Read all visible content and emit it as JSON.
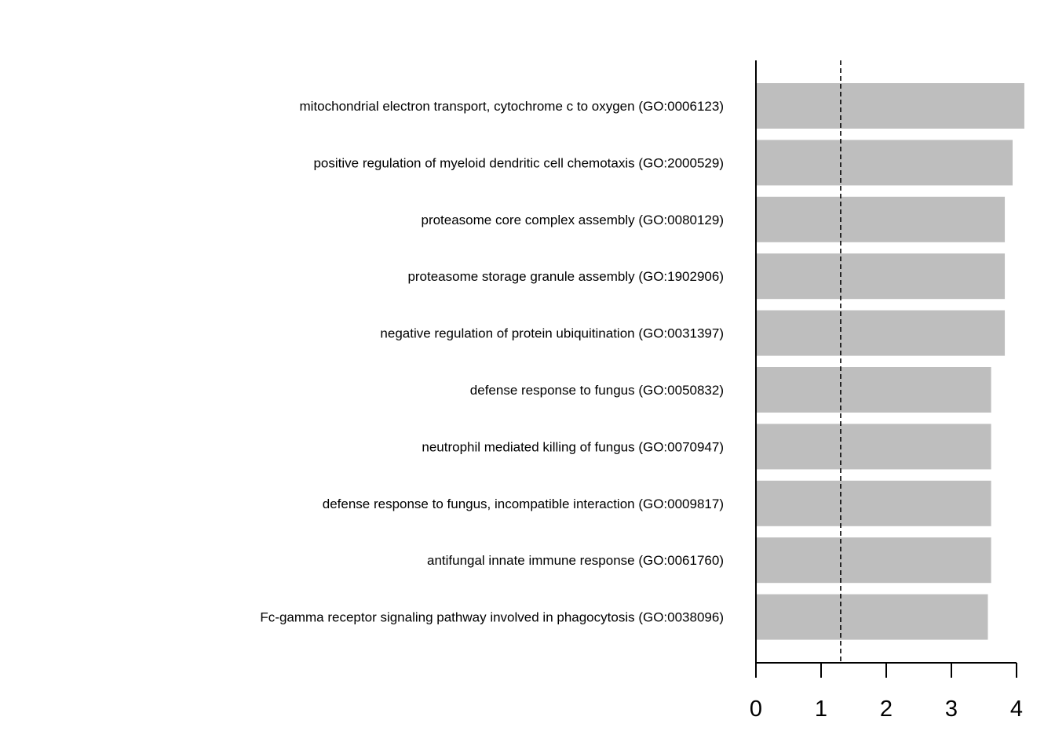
{
  "chart_data": {
    "type": "bar",
    "orientation": "horizontal",
    "title": "",
    "xlabel": "",
    "ylabel": "",
    "categories": [
      "mitochondrial electron transport, cytochrome c to oxygen (GO:0006123)",
      "positive regulation of myeloid dendritic cell chemotaxis (GO:2000529)",
      "proteasome core complex assembly (GO:0080129)",
      "proteasome storage granule assembly (GO:1902906)",
      "negative regulation of protein ubiquitination (GO:0031397)",
      "defense response to fungus (GO:0050832)",
      "neutrophil mediated killing of fungus (GO:0070947)",
      "defense response to fungus, incompatible interaction (GO:0009817)",
      "antifungal innate immune response (GO:0061760)",
      "Fc-gamma receptor signaling pathway involved in phagocytosis (GO:0038096)"
    ],
    "values": [
      4.12,
      3.94,
      3.82,
      3.82,
      3.82,
      3.61,
      3.61,
      3.61,
      3.61,
      3.56
    ],
    "xlim": [
      0,
      4
    ],
    "xticks": [
      "0",
      "1",
      "2",
      "3",
      "4"
    ],
    "reference_line": 1.301,
    "bar_color": "#bebebe",
    "grid": false
  }
}
